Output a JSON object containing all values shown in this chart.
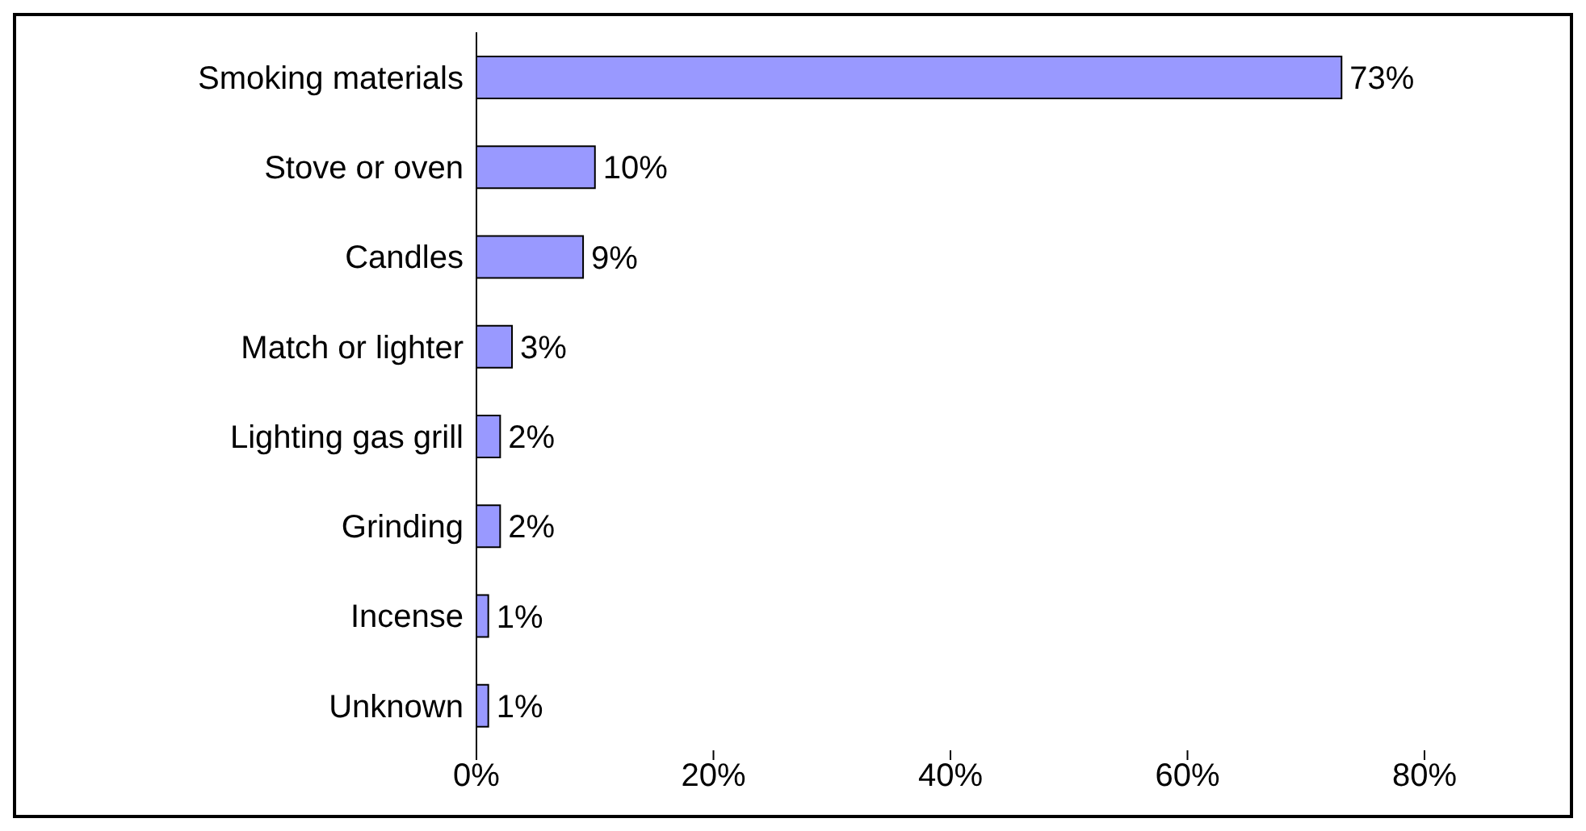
{
  "chart_data": {
    "type": "bar",
    "orientation": "horizontal",
    "categories": [
      "Smoking materials",
      "Stove or oven",
      "Candles",
      "Match or lighter",
      "Lighting gas grill",
      "Grinding",
      "Incense",
      "Unknown"
    ],
    "values": [
      73,
      10,
      9,
      3,
      2,
      2,
      1,
      1
    ],
    "value_labels": [
      "73%",
      "10%",
      "9%",
      "3%",
      "2%",
      "2%",
      "1%",
      "1%"
    ],
    "color": "#9999ff",
    "xlim": [
      0,
      80
    ],
    "xticks": [
      {
        "value": 0,
        "label": "0%"
      },
      {
        "value": 20,
        "label": "20%"
      },
      {
        "value": 40,
        "label": "40%"
      },
      {
        "value": 60,
        "label": "60%"
      },
      {
        "value": 80,
        "label": "80%"
      }
    ],
    "grid": false
  }
}
